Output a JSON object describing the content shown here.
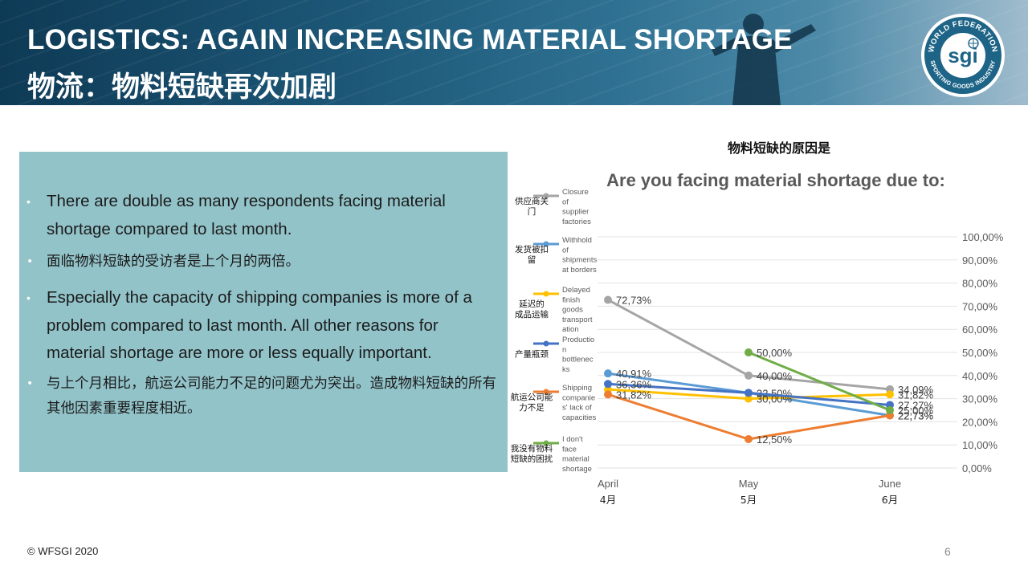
{
  "slide": {
    "title_en": "LOGISTICS: AGAIN INCREASING MATERIAL SHORTAGE",
    "title_cn": "物流：物料短缺再次加剧",
    "logo": {
      "top_text": "WORLD FEDERATION",
      "bottom_text": "SPORTING GOODS INDUSTRY",
      "mark": "sgi"
    },
    "footer": "© WFSGI 2020",
    "page_number": "6"
  },
  "textbox": {
    "bullets": [
      {
        "lang": "en",
        "text": "There are double as many respondents facing material shortage compared to last month."
      },
      {
        "lang": "cn",
        "text": "面临物料短缺的受访者是上个月的两倍。"
      },
      {
        "lang": "en",
        "text": "Especially the capacity of shipping companies is more of a problem compared to last month. All other reasons for material shortage are more or less equally important."
      },
      {
        "lang": "cn",
        "text": "与上个月相比，航运公司能力不足的问题尤为突出。造成物料短缺的所有其他因素重要程度相近。"
      }
    ]
  },
  "colors": {
    "header_dark": "#0e3a55",
    "textbox_bg": "#92c3c9",
    "closure": "#a5a5a5",
    "withhold": "#5b9bd5",
    "delayed": "#ffc000",
    "production": "#4472c4",
    "shipping": "#ed7d31",
    "no_shortage": "#70ad47"
  },
  "chart_data": {
    "type": "line",
    "title_cn": "物料短缺的原因是",
    "title": "Are you facing material shortage due to:",
    "categories": [
      "April",
      "May",
      "June"
    ],
    "categories_cn": [
      "4月",
      "5月",
      "6月"
    ],
    "ylim": [
      0,
      100
    ],
    "yticks": [
      "0,00%",
      "10,00%",
      "20,00%",
      "30,00%",
      "40,00%",
      "50,00%",
      "60,00%",
      "70,00%",
      "80,00%",
      "90,00%",
      "100,00%"
    ],
    "y_axis_side": "right",
    "grid": true,
    "legend_position": "left",
    "series": [
      {
        "name": "Closure of supplier factories",
        "name_cn": "供应商关门",
        "color": "#a5a5a5",
        "values": [
          72.73,
          40.0,
          34.09
        ],
        "labels": [
          "72,73%",
          "40,00%",
          "34,09%"
        ]
      },
      {
        "name": "Withhold of shipments at borders",
        "name_cn": "发货被扣留",
        "color": "#5b9bd5",
        "values": [
          40.91,
          32.5,
          22.73
        ],
        "labels": [
          "40,91%",
          "32,50%",
          "22,73%"
        ]
      },
      {
        "name": "Delayed finish goods transportation",
        "name_cn": "延迟的成品运输",
        "color": "#ffc000",
        "values": [
          34.0,
          30.0,
          31.82
        ],
        "labels": [
          "",
          "30,00%",
          "31,82%"
        ]
      },
      {
        "name": "Production bottlenecks",
        "name_cn": "产量瓶颈",
        "color": "#4472c4",
        "values": [
          36.36,
          32.5,
          27.27
        ],
        "labels": [
          "36,36%",
          "",
          "27,27%"
        ]
      },
      {
        "name": "Shipping companies's lack of capacities",
        "name_cn": "航运公司能力不足",
        "color": "#ed7d31",
        "values": [
          31.82,
          12.5,
          22.73
        ],
        "labels": [
          "31,82%",
          "12,50%",
          "22,73%"
        ]
      },
      {
        "name": "I don't face material shortage",
        "name_cn": "我没有物料短缺的困扰",
        "color": "#70ad47",
        "values": [
          null,
          50.0,
          25.0
        ],
        "labels": [
          "",
          "50,00%",
          "25,00%"
        ]
      }
    ],
    "legend_display": [
      {
        "cn": [
          "供应商关",
          "门"
        ],
        "en": [
          "Closure",
          "of",
          "supplier",
          "factories"
        ]
      },
      {
        "cn": [
          "发货被扣",
          "留"
        ],
        "en": [
          "Withhold",
          "of",
          "shipments",
          "at borders"
        ]
      },
      {
        "cn": [
          "延迟的",
          "成品运输"
        ],
        "en": [
          "Delayed",
          "finish",
          "goods",
          "transport",
          "ation"
        ]
      },
      {
        "cn": [
          "产量瓶颈"
        ],
        "en": [
          "Productio",
          "n",
          "bottlenec",
          "ks"
        ]
      },
      {
        "cn": [
          "航运公司能",
          "力不足"
        ],
        "en": [
          "Shipping",
          "companie",
          "s' lack of",
          "capacities"
        ]
      },
      {
        "cn": [
          "我没有物料",
          "短缺的困扰"
        ],
        "en": [
          "I don't",
          "face",
          "material",
          "shortage"
        ]
      }
    ]
  }
}
